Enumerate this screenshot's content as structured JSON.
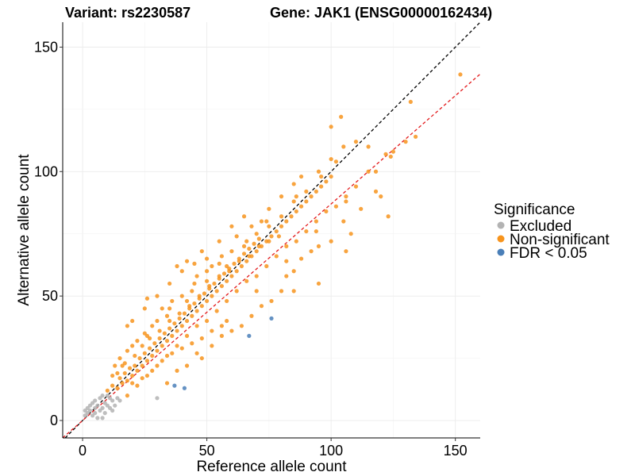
{
  "chart_data": {
    "type": "scatter",
    "title_left": "Variant: rs2230587",
    "title_right": "Gene: JAK1 (ENSG00000162434)",
    "xlabel": "Reference allele count",
    "ylabel": "Alternative allele count",
    "xlim": [
      -8,
      160
    ],
    "ylim": [
      -7,
      160
    ],
    "x_ticks": [
      0,
      50,
      100,
      150
    ],
    "y_ticks": [
      0,
      50,
      100,
      150
    ],
    "grid": true,
    "legend": {
      "title": "Significance",
      "position": "right",
      "entries": [
        {
          "label": "Excluded",
          "color": "#b3b3b3"
        },
        {
          "label": "Non-significant",
          "color": "#f7941d"
        },
        {
          "label": "FDR < 0.05",
          "color": "#4a7fb8"
        }
      ]
    },
    "reference_lines": [
      {
        "name": "identity",
        "slope": 1.0,
        "intercept": 0,
        "color": "#000000",
        "style": "dashed"
      },
      {
        "name": "fit",
        "slope": 0.87,
        "intercept": 0,
        "color": "#e31a1c",
        "style": "dashed"
      }
    ],
    "series": [
      {
        "name": "Excluded",
        "color": "#b3b3b3",
        "points": [
          [
            1,
            2
          ],
          [
            1,
            4
          ],
          [
            2,
            3
          ],
          [
            2,
            5
          ],
          [
            3,
            4
          ],
          [
            3,
            6
          ],
          [
            4,
            2
          ],
          [
            4,
            7
          ],
          [
            5,
            3
          ],
          [
            5,
            5
          ],
          [
            5,
            8
          ],
          [
            6,
            1
          ],
          [
            6,
            6
          ],
          [
            7,
            4
          ],
          [
            7,
            9
          ],
          [
            8,
            5
          ],
          [
            8,
            10
          ],
          [
            9,
            3
          ],
          [
            9,
            7
          ],
          [
            10,
            6
          ],
          [
            10,
            10
          ],
          [
            11,
            5
          ],
          [
            11,
            9
          ],
          [
            12,
            4
          ],
          [
            12,
            8
          ],
          [
            13,
            6
          ],
          [
            14,
            9
          ],
          [
            8,
            1
          ],
          [
            15,
            8
          ],
          [
            30,
            9
          ]
        ]
      },
      {
        "name": "Non-significant",
        "color": "#f7941d",
        "points": [
          [
            10,
            12
          ],
          [
            12,
            14
          ],
          [
            14,
            13
          ],
          [
            15,
            17
          ],
          [
            16,
            15
          ],
          [
            17,
            19
          ],
          [
            18,
            16
          ],
          [
            19,
            21
          ],
          [
            20,
            18
          ],
          [
            21,
            22
          ],
          [
            22,
            20
          ],
          [
            23,
            25
          ],
          [
            24,
            22
          ],
          [
            25,
            27
          ],
          [
            26,
            24
          ],
          [
            27,
            29
          ],
          [
            28,
            26
          ],
          [
            29,
            31
          ],
          [
            30,
            28
          ],
          [
            31,
            33
          ],
          [
            32,
            30
          ],
          [
            33,
            35
          ],
          [
            34,
            32
          ],
          [
            35,
            37
          ],
          [
            36,
            34
          ],
          [
            37,
            39
          ],
          [
            38,
            36
          ],
          [
            39,
            41
          ],
          [
            40,
            38
          ],
          [
            41,
            43
          ],
          [
            42,
            40
          ],
          [
            43,
            45
          ],
          [
            44,
            42
          ],
          [
            45,
            47
          ],
          [
            46,
            44
          ],
          [
            47,
            49
          ],
          [
            48,
            46
          ],
          [
            49,
            51
          ],
          [
            50,
            48
          ],
          [
            51,
            53
          ],
          [
            52,
            50
          ],
          [
            53,
            55
          ],
          [
            54,
            52
          ],
          [
            55,
            57
          ],
          [
            56,
            54
          ],
          [
            57,
            59
          ],
          [
            58,
            56
          ],
          [
            59,
            61
          ],
          [
            60,
            58
          ],
          [
            61,
            63
          ],
          [
            62,
            60
          ],
          [
            63,
            65
          ],
          [
            64,
            62
          ],
          [
            65,
            67
          ],
          [
            66,
            64
          ],
          [
            67,
            69
          ],
          [
            68,
            66
          ],
          [
            69,
            71
          ],
          [
            70,
            68
          ],
          [
            71,
            73
          ],
          [
            72,
            70
          ],
          [
            74,
            72
          ],
          [
            76,
            74
          ],
          [
            78,
            76
          ],
          [
            80,
            78
          ],
          [
            82,
            80
          ],
          [
            84,
            82
          ],
          [
            86,
            84
          ],
          [
            88,
            86
          ],
          [
            90,
            88
          ],
          [
            92,
            90
          ],
          [
            94,
            92
          ],
          [
            96,
            94
          ],
          [
            98,
            96
          ],
          [
            100,
            98
          ],
          [
            13,
            22
          ],
          [
            15,
            25
          ],
          [
            18,
            28
          ],
          [
            20,
            30
          ],
          [
            22,
            32
          ],
          [
            25,
            35
          ],
          [
            28,
            38
          ],
          [
            30,
            40
          ],
          [
            35,
            45
          ],
          [
            40,
            50
          ],
          [
            45,
            55
          ],
          [
            50,
            60
          ],
          [
            55,
            63
          ],
          [
            60,
            68
          ],
          [
            65,
            70
          ],
          [
            70,
            75
          ],
          [
            75,
            78
          ],
          [
            80,
            82
          ],
          [
            85,
            88
          ],
          [
            90,
            92
          ],
          [
            18,
            10
          ],
          [
            22,
            14
          ],
          [
            26,
            18
          ],
          [
            30,
            22
          ],
          [
            34,
            26
          ],
          [
            38,
            30
          ],
          [
            42,
            34
          ],
          [
            46,
            38
          ],
          [
            50,
            40
          ],
          [
            54,
            44
          ],
          [
            58,
            48
          ],
          [
            62,
            52
          ],
          [
            66,
            56
          ],
          [
            70,
            58
          ],
          [
            74,
            62
          ],
          [
            78,
            66
          ],
          [
            82,
            70
          ],
          [
            86,
            72
          ],
          [
            90,
            76
          ],
          [
            94,
            80
          ],
          [
            98,
            84
          ],
          [
            102,
            86
          ],
          [
            106,
            90
          ],
          [
            110,
            94
          ],
          [
            25,
            45
          ],
          [
            30,
            50
          ],
          [
            35,
            55
          ],
          [
            40,
            60
          ],
          [
            45,
            63
          ],
          [
            50,
            65
          ],
          [
            38,
            62
          ],
          [
            42,
            64
          ],
          [
            48,
            68
          ],
          [
            55,
            72
          ],
          [
            60,
            78
          ],
          [
            65,
            82
          ],
          [
            75,
            85
          ],
          [
            80,
            90
          ],
          [
            85,
            95
          ],
          [
            88,
            98
          ],
          [
            95,
            100
          ],
          [
            100,
            105
          ],
          [
            105,
            110
          ],
          [
            104,
            122
          ],
          [
            100,
            118
          ],
          [
            110,
            112
          ],
          [
            115,
            110
          ],
          [
            122,
            107
          ],
          [
            125,
            108
          ],
          [
            130,
            112
          ],
          [
            134,
            114
          ],
          [
            132,
            128
          ],
          [
            152,
            139
          ],
          [
            115,
            100
          ],
          [
            118,
            92
          ],
          [
            120,
            90
          ],
          [
            123,
            82
          ],
          [
            112,
            85
          ],
          [
            105,
            80
          ],
          [
            108,
            75
          ],
          [
            100,
            72
          ],
          [
            95,
            70
          ],
          [
            92,
            68
          ],
          [
            88,
            65
          ],
          [
            85,
            60
          ],
          [
            82,
            58
          ],
          [
            85,
            52
          ],
          [
            95,
            55
          ],
          [
            106,
            68
          ],
          [
            38,
            20
          ],
          [
            42,
            22
          ],
          [
            48,
            25
          ],
          [
            52,
            30
          ],
          [
            56,
            34
          ],
          [
            60,
            36
          ],
          [
            64,
            38
          ],
          [
            68,
            42
          ],
          [
            72,
            46
          ],
          [
            76,
            48
          ],
          [
            80,
            52
          ],
          [
            20,
            15
          ],
          [
            24,
            17
          ],
          [
            28,
            20
          ],
          [
            32,
            24
          ],
          [
            36,
            27
          ],
          [
            40,
            29
          ],
          [
            44,
            31
          ],
          [
            48,
            33
          ],
          [
            52,
            36
          ],
          [
            56,
            38
          ],
          [
            18,
            38
          ],
          [
            20,
            40
          ],
          [
            16,
            22
          ],
          [
            12,
            18
          ],
          [
            26,
            49
          ],
          [
            32,
            45
          ],
          [
            36,
            48
          ],
          [
            44,
            52
          ],
          [
            46,
            58
          ],
          [
            52,
            62
          ],
          [
            56,
            66
          ],
          [
            62,
            74
          ],
          [
            68,
            78
          ],
          [
            72,
            80
          ],
          [
            34,
            15
          ],
          [
            46,
            27
          ],
          [
            58,
            40
          ],
          [
            70,
            52
          ],
          [
            82,
            64
          ],
          [
            94,
            76
          ],
          [
            106,
            88
          ],
          [
            118,
            100
          ],
          [
            124,
            106
          ],
          [
            26,
            34
          ],
          [
            34,
            42
          ],
          [
            42,
            48
          ],
          [
            50,
            56
          ],
          [
            58,
            62
          ],
          [
            66,
            72
          ],
          [
            74,
            80
          ],
          [
            86,
            90
          ],
          [
            96,
            98
          ],
          [
            102,
            104
          ],
          [
            14,
            19
          ],
          [
            17,
            23
          ],
          [
            21,
            26
          ],
          [
            24,
            30
          ],
          [
            27,
            33
          ],
          [
            31,
            36
          ],
          [
            35,
            40
          ],
          [
            39,
            43
          ],
          [
            43,
            46
          ],
          [
            47,
            50
          ],
          [
            51,
            54
          ],
          [
            55,
            58
          ],
          [
            59,
            60
          ],
          [
            63,
            64
          ],
          [
            67,
            66
          ],
          [
            71,
            70
          ],
          [
            75,
            72
          ],
          [
            79,
            74
          ]
        ]
      },
      {
        "name": "FDR < 0.05",
        "color": "#4a7fb8",
        "points": [
          [
            37,
            14
          ],
          [
            41,
            13
          ],
          [
            67,
            34
          ],
          [
            76,
            41
          ]
        ]
      }
    ]
  }
}
